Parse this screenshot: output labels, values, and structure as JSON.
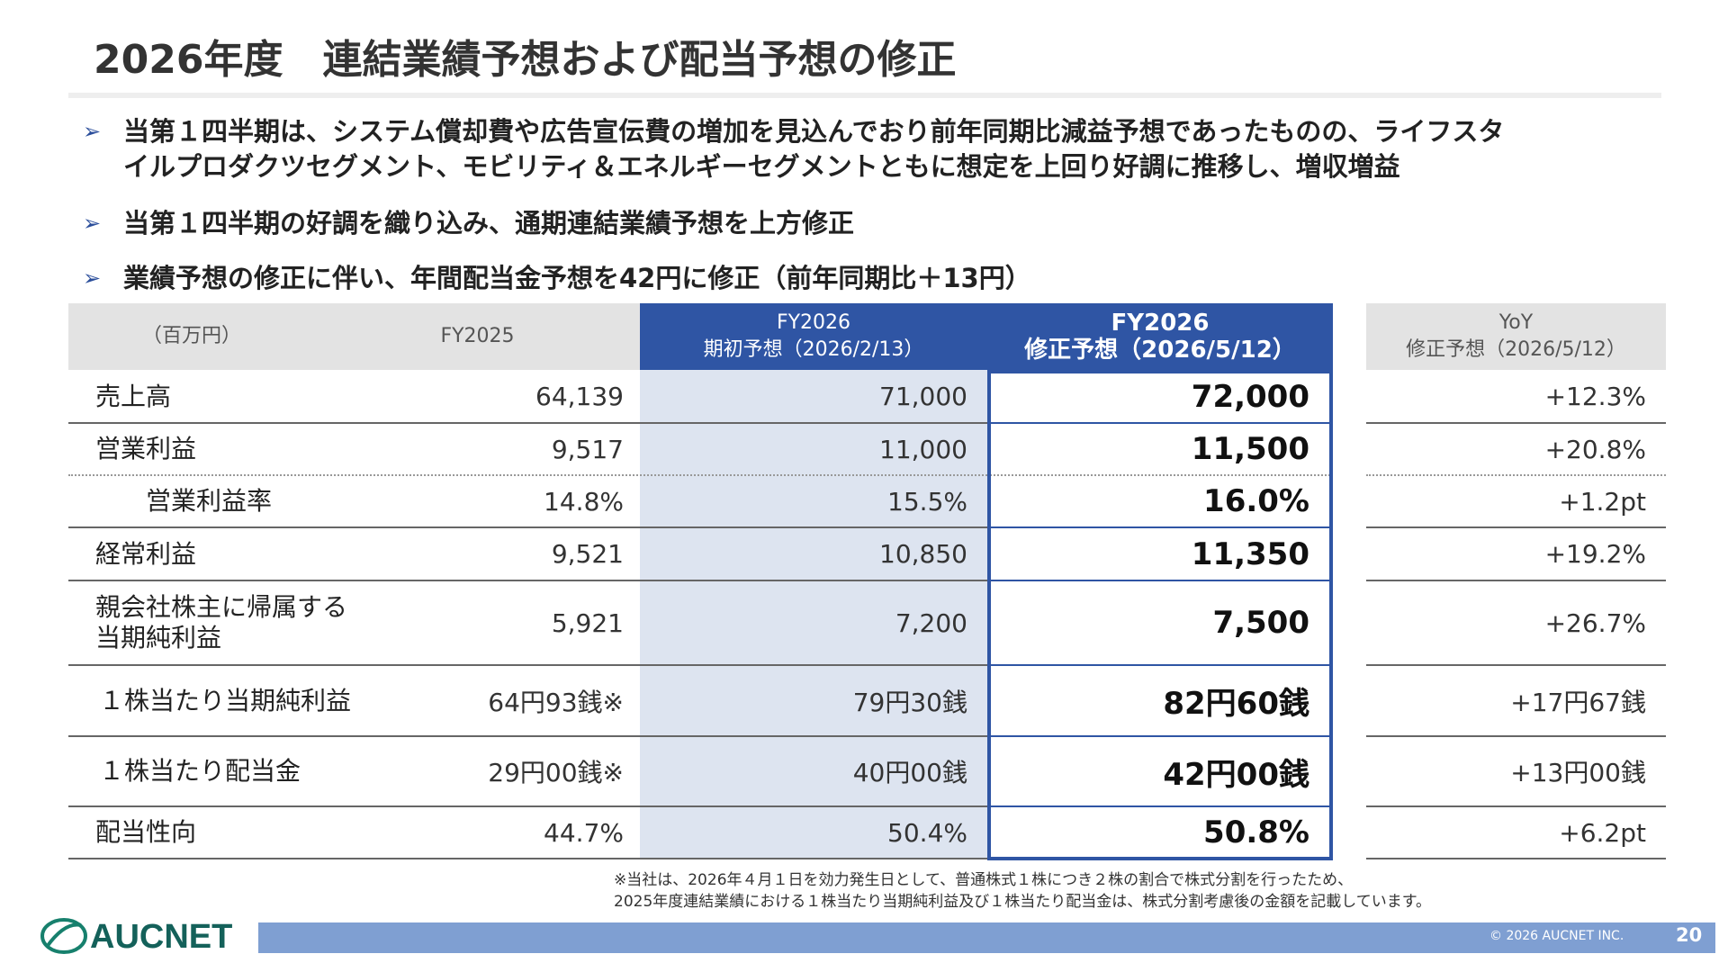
{
  "header": {
    "title": "2026年度　連結業績予想および配当予想の修正"
  },
  "bullets": [
    [
      "当第１四半期は、システム償却費や広告宣伝費の増加を見込んでおり前年同期比減益予想であったものの、ライフスタ",
      "イルプロダクツセグメント、モビリティ＆エネルギーセグメントともに想定を上回り好調に推移し、増収増益"
    ],
    [
      "当第１四半期の好調を織り込み、通期連結業績予想を上方修正"
    ],
    [
      "業績予想の修正に伴い、年間配当金予想を42円に修正（前年同期比＋13円）"
    ]
  ],
  "table": {
    "header": [
      [
        "（百万円）"
      ],
      [
        "FY2025"
      ],
      [
        "FY2026",
        "期初予想（2026/2/13）"
      ],
      [
        "FY2026",
        "修正予想（2026/5/12）"
      ],
      [
        "YoY",
        "修正予想（2026/5/12）"
      ]
    ],
    "rows": [
      {
        "label": [
          "売上高"
        ],
        "cells": [
          "64,139",
          "71,000",
          "72,000",
          "+12.3%"
        ]
      },
      {
        "label": [
          "営業利益"
        ],
        "cells": [
          "9,517",
          "11,000",
          "11,500",
          "+20.8%"
        ]
      },
      {
        "label": [
          "営業利益率"
        ],
        "cells": [
          "14.8%",
          "15.5%",
          "16.0%",
          "+1.2pt"
        ]
      },
      {
        "label": [
          "経常利益"
        ],
        "cells": [
          "9,521",
          "10,850",
          "11,350",
          "+19.2%"
        ]
      },
      {
        "label": [
          "親会社株主に帰属する",
          "当期純利益"
        ],
        "cells": [
          "5,921",
          "7,200",
          "7,500",
          "+26.7%"
        ]
      },
      {
        "label": [
          "１株当たり当期純利益"
        ],
        "cells": [
          "64円93銭※",
          "79円30銭",
          "82円60銭",
          "+17円67銭"
        ]
      },
      {
        "label": [
          "１株当たり配当金"
        ],
        "cells": [
          "29円00銭※",
          "40円00銭",
          "42円00銭",
          "+13円00銭"
        ]
      },
      {
        "label": [
          "配当性向"
        ],
        "cells": [
          "44.7%",
          "50.4%",
          "50.8%",
          "+6.2pt"
        ]
      }
    ]
  },
  "footnote": [
    "※当社は、2026年４月１日を効力発生日として、普通株式１株につき２株の割合で株式分割を行ったため、",
    "2025年度連結業績における１株当たり当期純利益及び１株当たり配当金は、株式分割考慮後の金額を記載しています。"
  ],
  "footer": {
    "logo": "AUCNET",
    "copyright": "© 2026 AUCNET INC.",
    "page": "20"
  }
}
